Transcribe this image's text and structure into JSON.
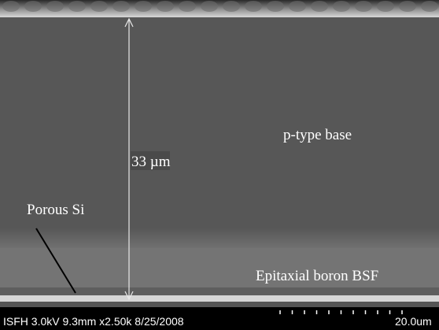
{
  "annotations": {
    "thickness": "33 µm",
    "base": "p-type base",
    "porous": "Porous Si",
    "bsf": "Epitaxial boron BSF"
  },
  "footer": {
    "info": "ISFH 3.0kV 9.3mm x2.50k 8/25/2008",
    "scale": "20.0um"
  }
}
